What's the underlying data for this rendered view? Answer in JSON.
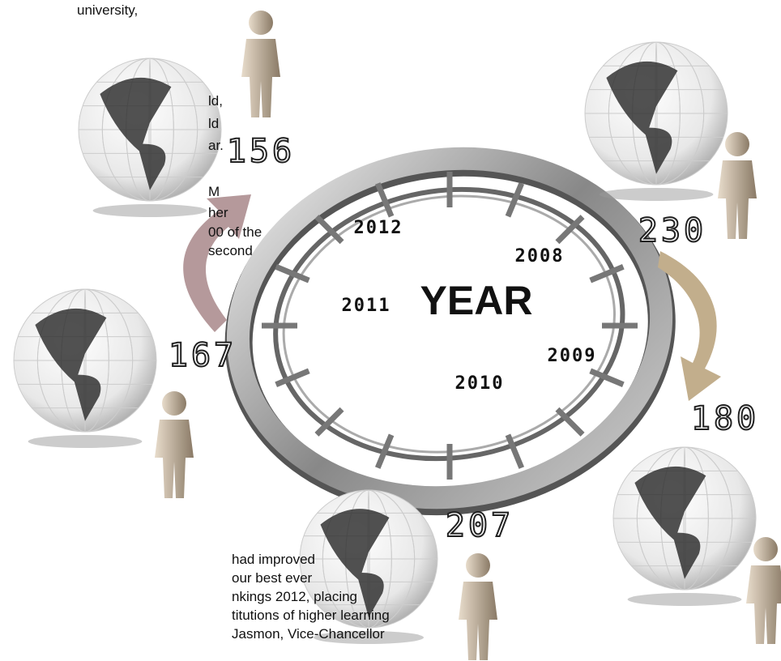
{
  "text_top": [
    "university,",
    "ld,",
    "ld",
    "ar.",
    "M",
    "her",
    "00 of the",
    "second"
  ],
  "text_bottom": [
    "had improved",
    "our best ever",
    "nkings 2012, placing",
    "titutions of higher learning",
    "Jasmon, Vice-Chancellor"
  ],
  "center": "YEAR",
  "years": [
    "2012",
    "2008",
    "2011",
    "2009",
    "2010"
  ],
  "ranks": [
    "156",
    "230",
    "167",
    "180",
    "207"
  ]
}
